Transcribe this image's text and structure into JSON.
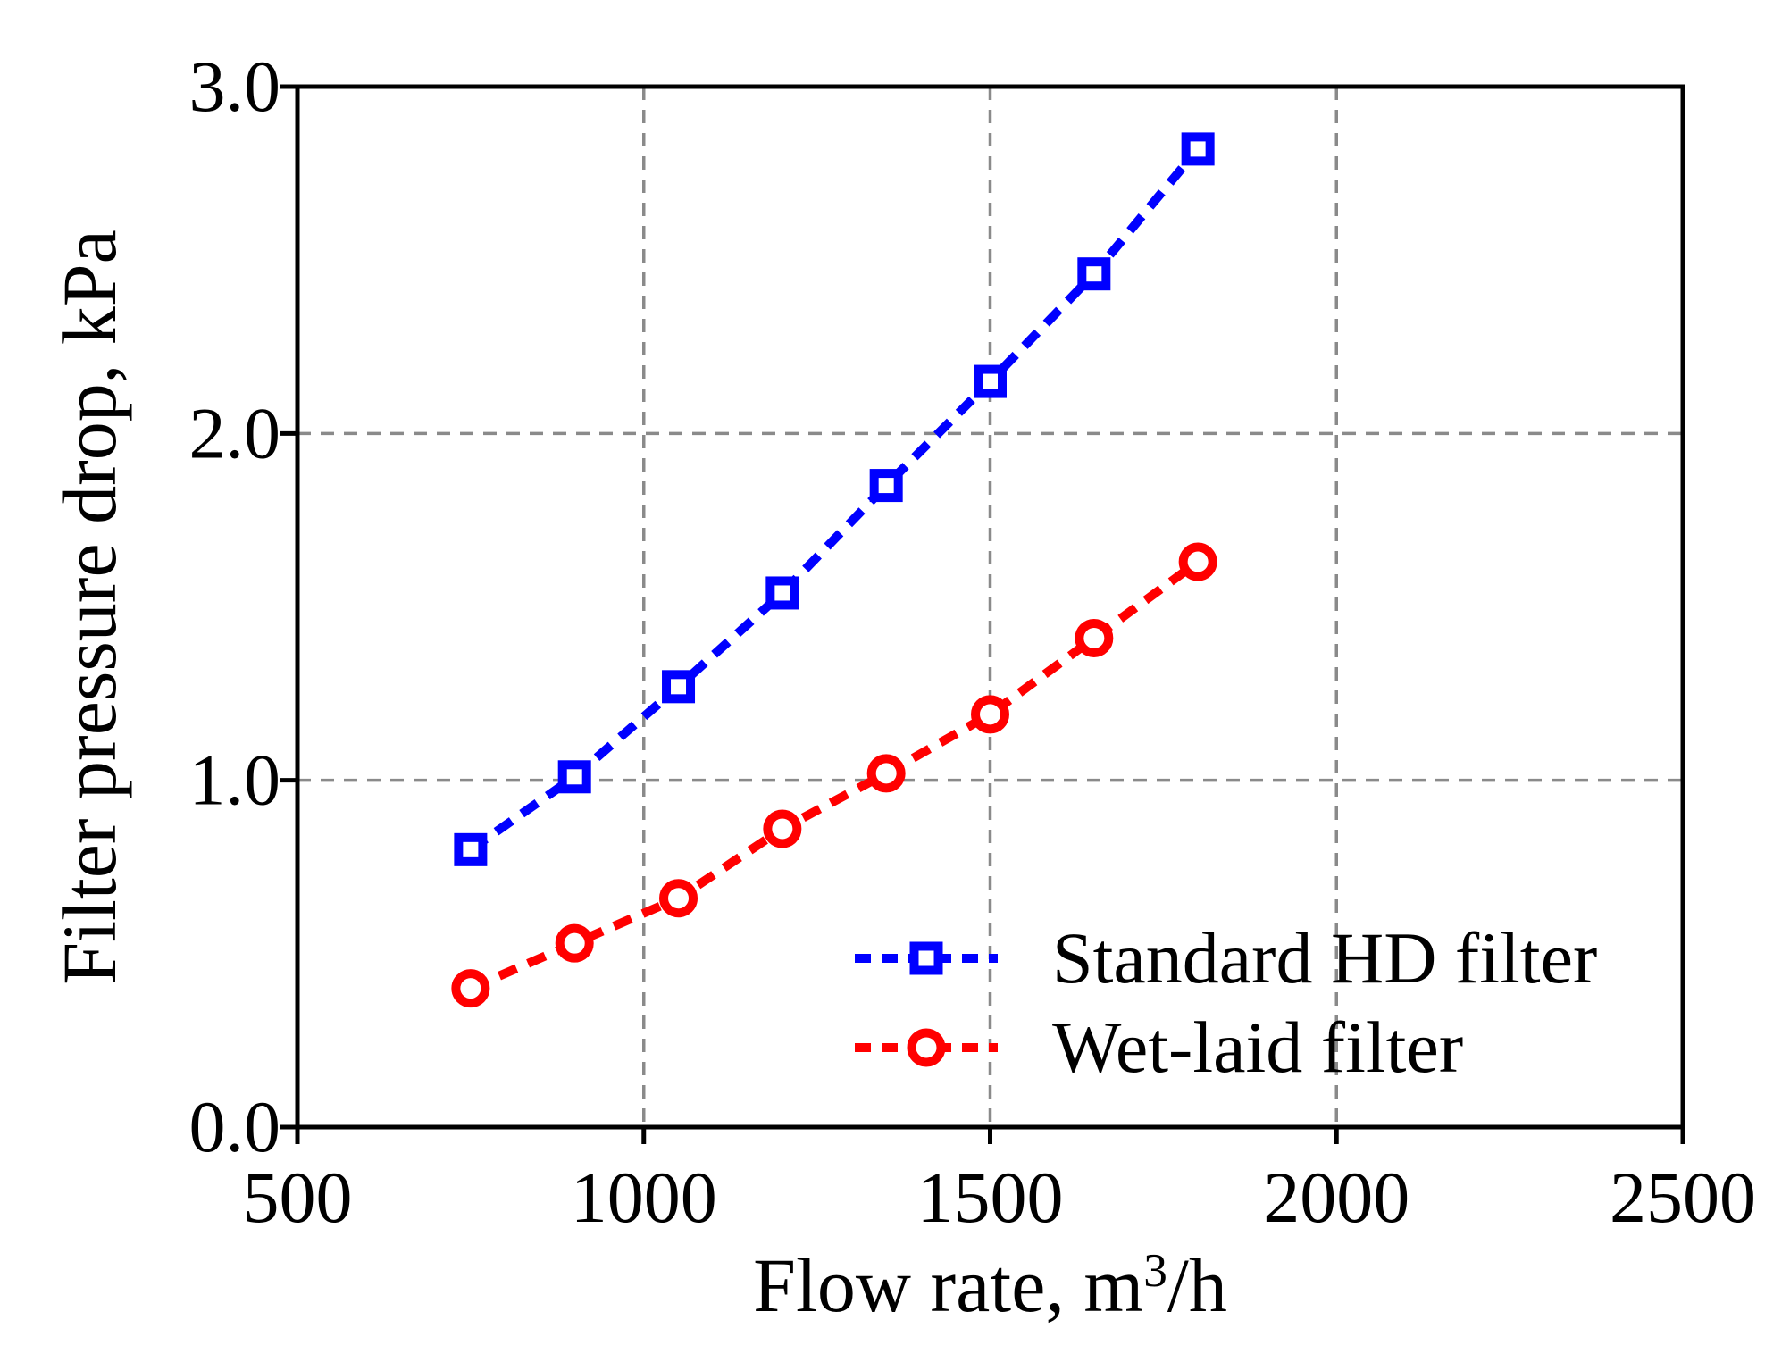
{
  "chart_data": {
    "type": "line",
    "title": "",
    "xlabel": {
      "prefix": "Flow rate, m",
      "sup": "3",
      "suffix": "/h"
    },
    "ylabel": "Filter pressure drop, kPa",
    "xlim": [
      500,
      2500
    ],
    "ylim": [
      0.0,
      3.0
    ],
    "xticks": [
      {
        "value": 500,
        "label": "500"
      },
      {
        "value": 1000,
        "label": "1000"
      },
      {
        "value": 1500,
        "label": "1500"
      },
      {
        "value": 2000,
        "label": "2000"
      },
      {
        "value": 2500,
        "label": "2500"
      }
    ],
    "yticks": [
      {
        "value": 0.0,
        "label": "0.0"
      },
      {
        "value": 1.0,
        "label": "1.0"
      },
      {
        "value": 2.0,
        "label": "2.0"
      },
      {
        "value": 3.0,
        "label": "3.0"
      }
    ],
    "x_gridlines": [
      1000,
      1500,
      2000
    ],
    "y_gridlines": [
      1.0,
      2.0
    ],
    "grid_style": "dashed",
    "legend_position": "inside-lower-right",
    "series": [
      {
        "name": "Standard HD filter",
        "marker": "square",
        "color": "#0000ff",
        "x": [
          750,
          900,
          1050,
          1200,
          1350,
          1500,
          1650,
          1800
        ],
        "y": [
          0.8,
          1.01,
          1.27,
          1.54,
          1.85,
          2.15,
          2.46,
          2.82
        ]
      },
      {
        "name": "Wet-laid filter",
        "marker": "circle",
        "color": "#ff0000",
        "x": [
          750,
          900,
          1050,
          1200,
          1350,
          1500,
          1650,
          1800
        ],
        "y": [
          0.4,
          0.53,
          0.66,
          0.86,
          1.02,
          1.19,
          1.41,
          1.63
        ]
      }
    ]
  },
  "colors": {
    "series_blue": "#0000ff",
    "series_red": "#ff0000",
    "gridline": "#8a8a8a",
    "axis": "#000000",
    "background": "#ffffff",
    "marker_fill": "#ffffff"
  }
}
